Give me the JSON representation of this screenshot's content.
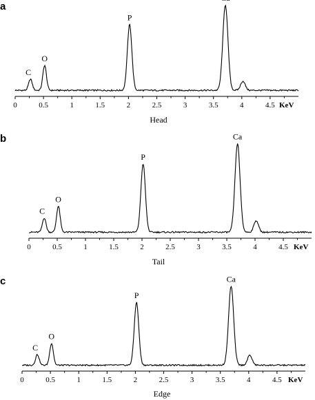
{
  "figure": {
    "background": "#ffffff",
    "line_color": "#000000"
  },
  "chart_data": [
    {
      "type": "line",
      "panel_letter": "a",
      "caption": "Head",
      "xlabel": "KeV",
      "xlim": [
        0,
        5
      ],
      "xticks": [
        0,
        0.5,
        1,
        1.5,
        2,
        2.5,
        3,
        3.5,
        4,
        4.5
      ],
      "xtick_labels": [
        "0",
        "0.5",
        "1",
        "1.5",
        "2",
        "2.5",
        "3",
        "3.5",
        "4",
        "4.5"
      ],
      "ylim": [
        0,
        140
      ],
      "baseline": 5,
      "peaks": [
        {
          "label": "C",
          "x": 0.27,
          "height": 17,
          "width": 0.032
        },
        {
          "label": "O",
          "x": 0.52,
          "height": 38,
          "width": 0.032
        },
        {
          "label": "P",
          "x": 2.02,
          "height": 100,
          "width": 0.04
        },
        {
          "label": "Ca",
          "x": 3.71,
          "height": 130,
          "width": 0.045
        },
        {
          "label": "",
          "x": 4.02,
          "height": 14,
          "width": 0.04
        }
      ]
    },
    {
      "type": "line",
      "panel_letter": "b",
      "caption": "Tail",
      "xlabel": "KeV",
      "xlim": [
        0,
        5
      ],
      "xticks": [
        0,
        0.5,
        1,
        1.5,
        2,
        2.5,
        3,
        3.5,
        4,
        4.5
      ],
      "xtick_labels": [
        "0",
        "0.5",
        "1",
        "1.5",
        "2",
        "2.5",
        "3",
        "3.5",
        "4",
        "4.5"
      ],
      "ylim": [
        0,
        150
      ],
      "baseline": 5,
      "peaks": [
        {
          "label": "C",
          "x": 0.27,
          "height": 22,
          "width": 0.032
        },
        {
          "label": "O",
          "x": 0.52,
          "height": 40,
          "width": 0.032
        },
        {
          "label": "P",
          "x": 2.02,
          "height": 105,
          "width": 0.04
        },
        {
          "label": "Ca",
          "x": 3.69,
          "height": 136,
          "width": 0.045
        },
        {
          "label": "",
          "x": 4.02,
          "height": 18,
          "width": 0.04
        }
      ]
    },
    {
      "type": "line",
      "panel_letter": "c",
      "caption": "Edge",
      "xlabel": "KeV",
      "xlim": [
        0,
        5
      ],
      "xticks": [
        0,
        0.5,
        1,
        1.5,
        2,
        2.5,
        3,
        3.5,
        4,
        4.5
      ],
      "xtick_labels": [
        "0",
        "0.5",
        "1",
        "1.5",
        "2",
        "2.5",
        "3",
        "3.5",
        "4",
        "4.5"
      ],
      "ylim": [
        0,
        150
      ],
      "baseline": 5,
      "peaks": [
        {
          "label": "C",
          "x": 0.27,
          "height": 17,
          "width": 0.032
        },
        {
          "label": "O",
          "x": 0.52,
          "height": 35,
          "width": 0.032
        },
        {
          "label": "P",
          "x": 2.02,
          "height": 100,
          "width": 0.04
        },
        {
          "label": "Ca",
          "x": 3.69,
          "height": 126,
          "width": 0.045
        },
        {
          "label": "",
          "x": 4.02,
          "height": 16,
          "width": 0.04
        }
      ]
    }
  ]
}
